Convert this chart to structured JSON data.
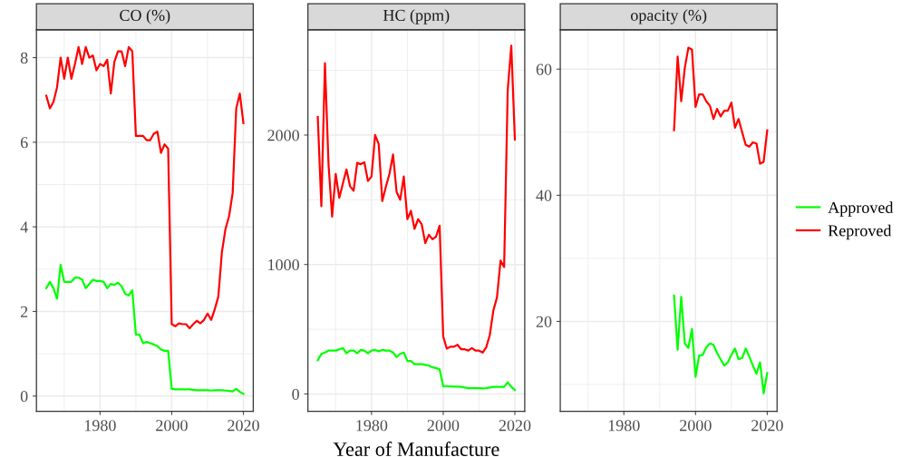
{
  "chart_data": [
    {
      "type": "line",
      "title": "CO (%)",
      "x": [
        1965,
        1966,
        1967,
        1968,
        1969,
        1970,
        1971,
        1972,
        1973,
        1974,
        1975,
        1976,
        1977,
        1978,
        1979,
        1980,
        1981,
        1982,
        1983,
        1984,
        1985,
        1986,
        1987,
        1988,
        1989,
        1990,
        1991,
        1992,
        1993,
        1994,
        1995,
        1996,
        1997,
        1998,
        1999,
        2000,
        2001,
        2002,
        2003,
        2004,
        2005,
        2006,
        2007,
        2008,
        2009,
        2010,
        2011,
        2012,
        2013,
        2014,
        2015,
        2016,
        2017,
        2018,
        2019,
        2020
      ],
      "series": [
        {
          "color": "#00ff00",
          "values": [
            2.55,
            2.7,
            2.55,
            2.3,
            3.1,
            2.7,
            2.7,
            2.7,
            2.8,
            2.8,
            2.75,
            2.55,
            2.65,
            2.75,
            2.72,
            2.72,
            2.7,
            2.55,
            2.65,
            2.63,
            2.68,
            2.6,
            2.42,
            2.38,
            2.5,
            1.45,
            1.45,
            1.25,
            1.28,
            1.25,
            1.22,
            1.18,
            1.1,
            1.07,
            1.07,
            0.17,
            0.16,
            0.16,
            0.16,
            0.16,
            0.16,
            0.15,
            0.14,
            0.14,
            0.14,
            0.14,
            0.13,
            0.14,
            0.14,
            0.14,
            0.13,
            0.12,
            0.11,
            0.17,
            0.1,
            0.05
          ]
        },
        {
          "color": "#ff0000",
          "values": [
            7.1,
            6.8,
            6.95,
            7.3,
            8.0,
            7.5,
            8.0,
            7.5,
            7.85,
            8.25,
            7.85,
            8.25,
            8.0,
            8.05,
            7.7,
            7.85,
            7.8,
            7.95,
            7.15,
            7.9,
            8.15,
            8.15,
            7.8,
            8.25,
            8.15,
            6.15,
            6.15,
            6.15,
            6.05,
            6.05,
            6.2,
            6.25,
            5.75,
            5.95,
            5.85,
            1.7,
            1.65,
            1.72,
            1.7,
            1.7,
            1.6,
            1.7,
            1.78,
            1.72,
            1.8,
            1.95,
            1.8,
            2.05,
            2.35,
            3.4,
            3.95,
            4.25,
            4.8,
            6.8,
            7.15,
            6.45
          ]
        }
      ],
      "xlim": [
        1962.25,
        2022.75
      ],
      "xticks": [
        1980,
        2000,
        2020
      ],
      "ylim": [
        -0.36,
        8.66
      ],
      "yticks": [
        0,
        2,
        4,
        6,
        8
      ],
      "grid": true,
      "legend": false
    },
    {
      "type": "line",
      "title": "HC (ppm)",
      "xlabel": "Year of Manufacture",
      "x": [
        1965,
        1966,
        1967,
        1968,
        1969,
        1970,
        1971,
        1972,
        1973,
        1974,
        1975,
        1976,
        1977,
        1978,
        1979,
        1980,
        1981,
        1982,
        1983,
        1984,
        1985,
        1986,
        1987,
        1988,
        1989,
        1990,
        1991,
        1992,
        1993,
        1994,
        1995,
        1996,
        1997,
        1998,
        1999,
        2000,
        2001,
        2002,
        2003,
        2004,
        2005,
        2006,
        2007,
        2008,
        2009,
        2010,
        2011,
        2012,
        2013,
        2014,
        2015,
        2016,
        2017,
        2018,
        2019,
        2020
      ],
      "series": [
        {
          "color": "#00ff00",
          "values": [
            260,
            310,
            320,
            335,
            335,
            335,
            345,
            355,
            315,
            335,
            335,
            315,
            340,
            335,
            315,
            335,
            340,
            330,
            340,
            335,
            335,
            320,
            285,
            310,
            320,
            255,
            255,
            230,
            230,
            230,
            225,
            220,
            205,
            200,
            190,
            60,
            58,
            58,
            57,
            56,
            55,
            50,
            45,
            45,
            45,
            45,
            42,
            45,
            50,
            55,
            55,
            55,
            55,
            90,
            55,
            30
          ]
        },
        {
          "color": "#ff0000",
          "values": [
            2140,
            1450,
            2555,
            1775,
            1370,
            1700,
            1515,
            1625,
            1735,
            1605,
            1570,
            1785,
            1775,
            1790,
            1645,
            1680,
            2000,
            1930,
            1490,
            1600,
            1700,
            1850,
            1560,
            1500,
            1680,
            1350,
            1415,
            1275,
            1350,
            1310,
            1165,
            1230,
            1195,
            1215,
            1300,
            445,
            350,
            365,
            365,
            380,
            345,
            345,
            335,
            355,
            335,
            335,
            320,
            360,
            455,
            645,
            745,
            1030,
            980,
            2345,
            2690,
            1965
          ]
        }
      ],
      "xlim": [
        1962.25,
        2022.75
      ],
      "xticks": [
        1980,
        2000,
        2020
      ],
      "ylim": [
        -134,
        2814
      ],
      "yticks": [
        0,
        1000,
        2000
      ],
      "grid": true,
      "legend": false
    },
    {
      "type": "line",
      "title": "opacity (%)",
      "x": [
        1994,
        1995,
        1996,
        1997,
        1998,
        1999,
        2000,
        2001,
        2002,
        2003,
        2004,
        2005,
        2006,
        2007,
        2008,
        2009,
        2010,
        2011,
        2012,
        2013,
        2014,
        2015,
        2016,
        2017,
        2018,
        2019,
        2020
      ],
      "series": [
        {
          "name": "Approved",
          "color": "#00ff00",
          "values": [
            24.1,
            15.5,
            23.9,
            16.5,
            15.8,
            18.8,
            11.2,
            14.6,
            14.7,
            15.9,
            16.5,
            16.3,
            15.0,
            14.0,
            13.0,
            13.5,
            14.7,
            15.7,
            14.0,
            14.2,
            15.7,
            14.4,
            13.0,
            11.7,
            13.5,
            8.6,
            11.8
          ]
        },
        {
          "name": "Reproved",
          "color": "#ff0000",
          "values": [
            50.3,
            62.0,
            54.9,
            60.2,
            63.4,
            63.1,
            54.0,
            56.0,
            56.0,
            54.9,
            54.2,
            52.1,
            53.7,
            52.5,
            53.4,
            53.4,
            54.7,
            50.7,
            52.1,
            50.0,
            48.0,
            47.7,
            48.4,
            48.2,
            45.0,
            45.3,
            50.3
          ]
        }
      ],
      "xlim": [
        1962.25,
        2022.75
      ],
      "xticks": [
        1980,
        2000,
        2020
      ],
      "ylim": [
        5.75,
        66.25
      ],
      "yticks": [
        20,
        40,
        60
      ],
      "grid": true,
      "legend": "right"
    }
  ]
}
